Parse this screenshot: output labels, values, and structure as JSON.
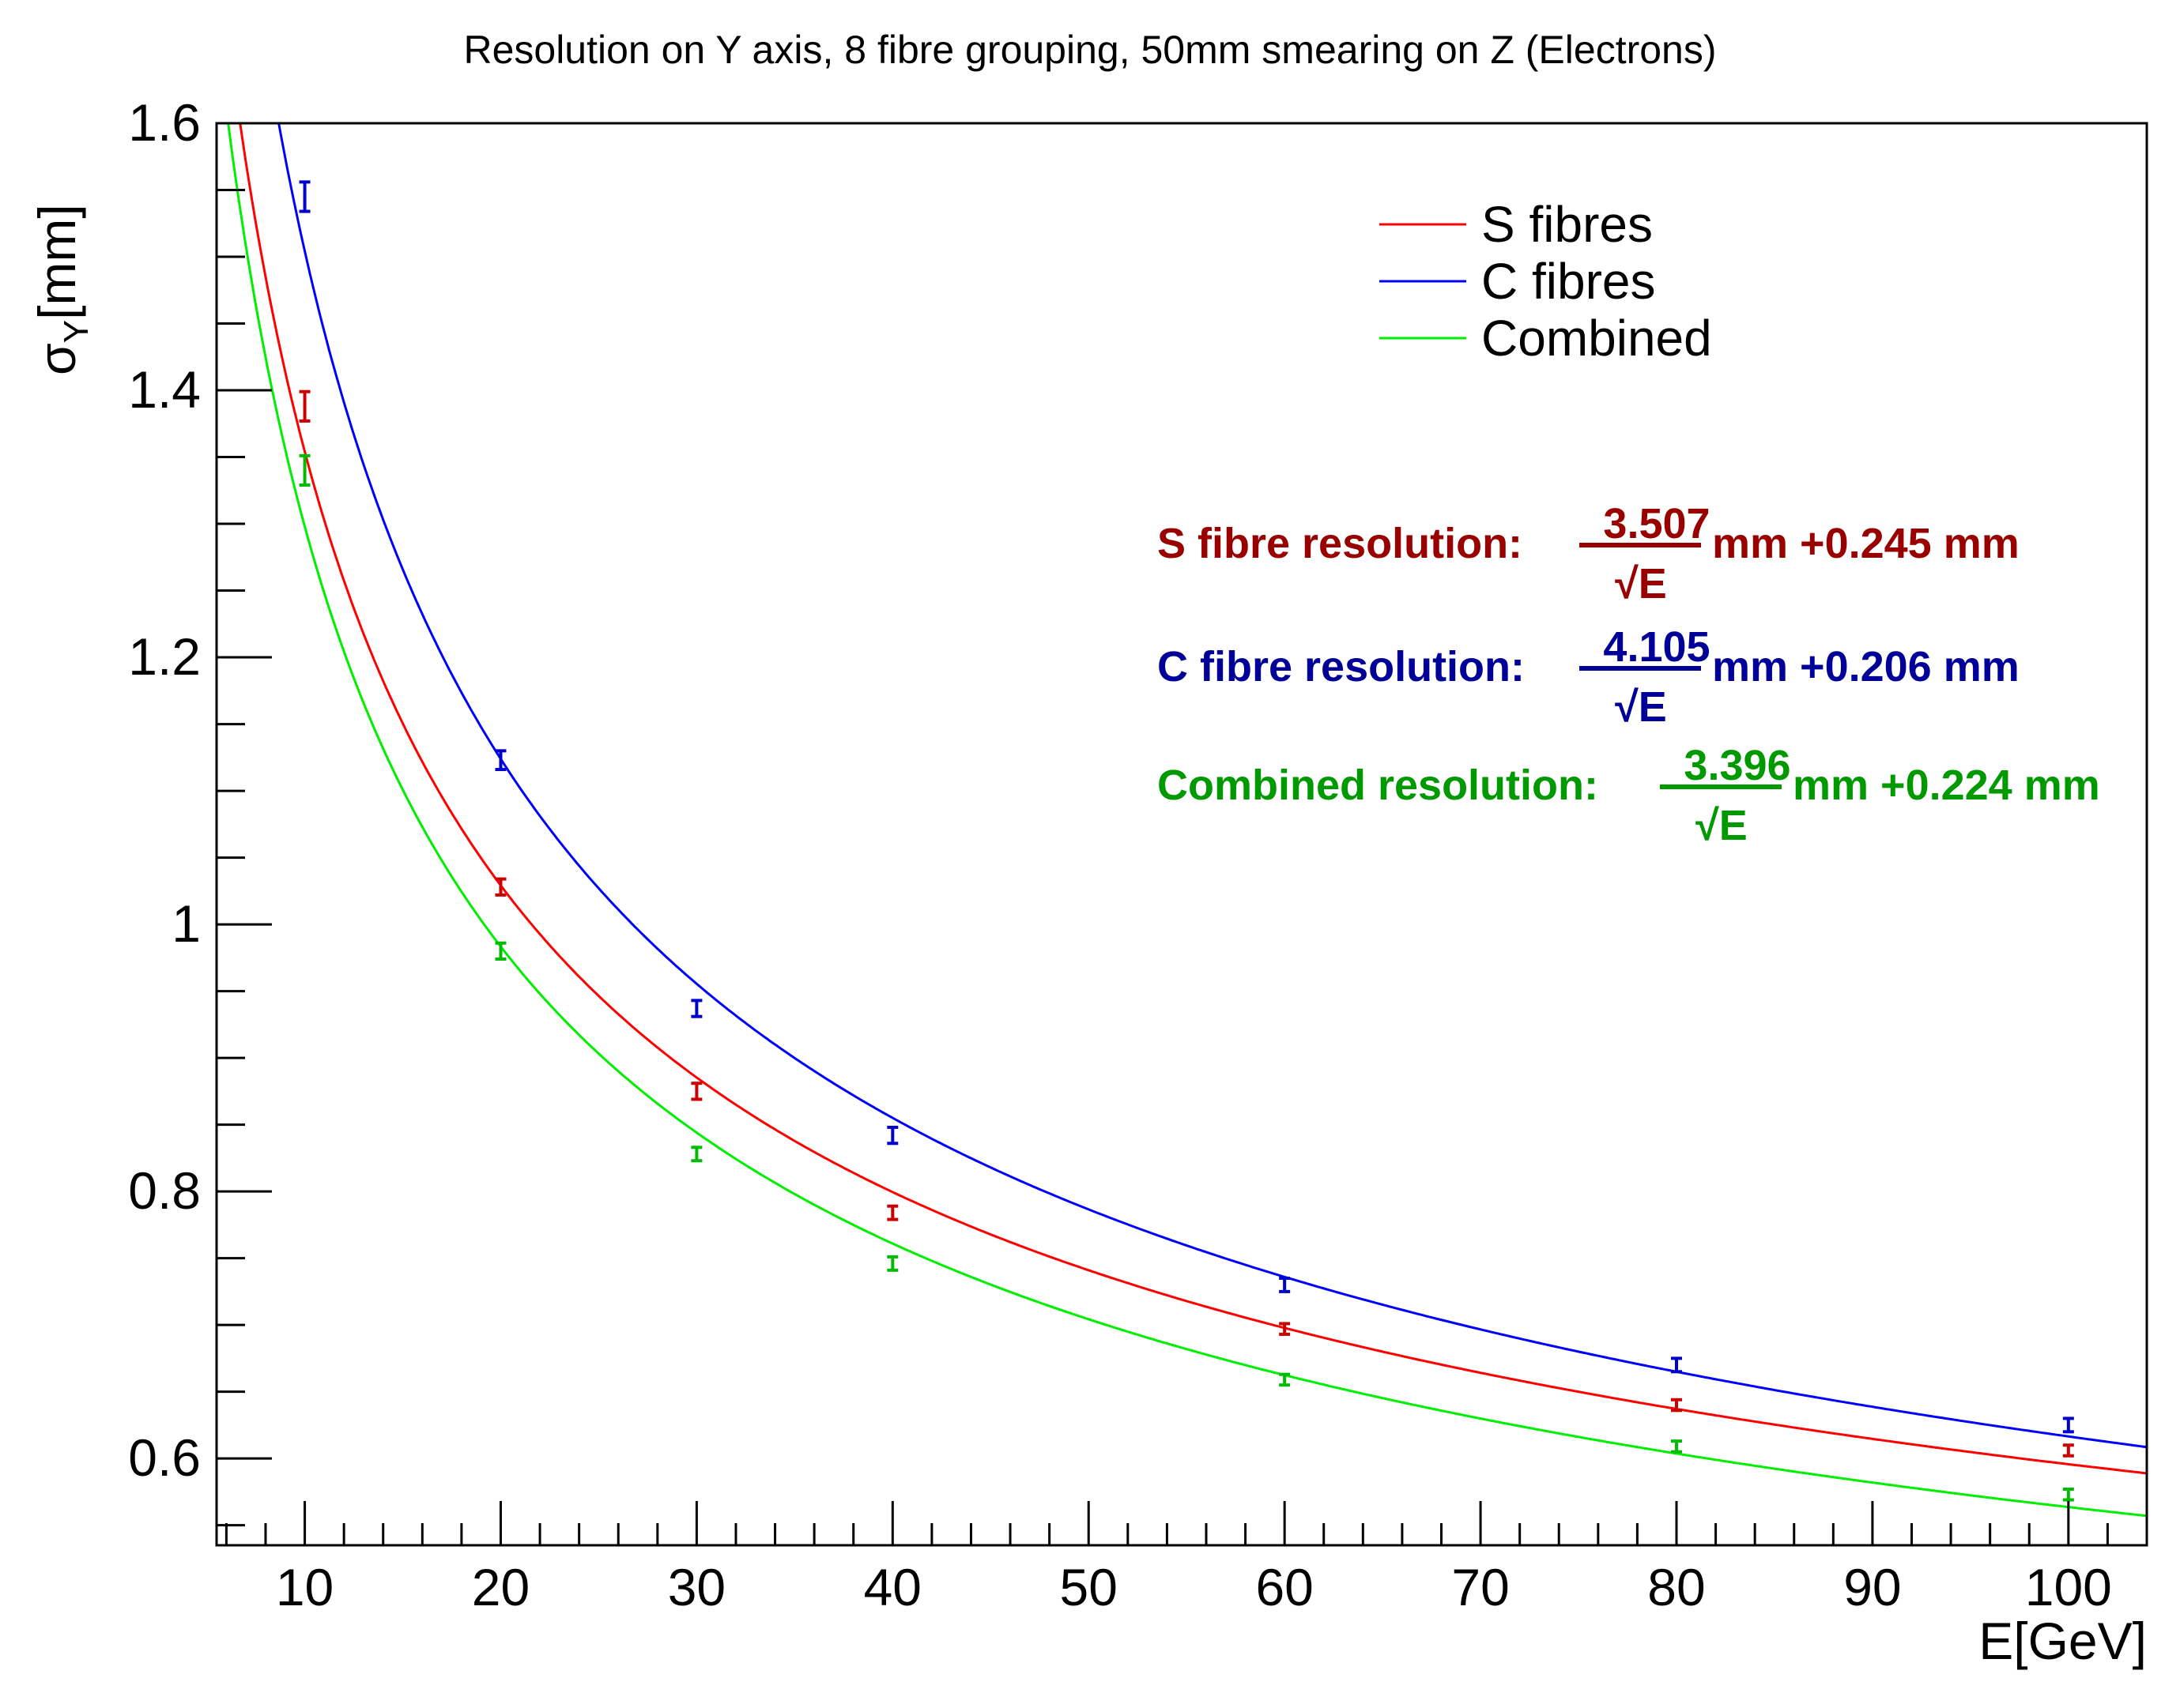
{
  "chart_data": {
    "type": "scatter",
    "title": "Resolution on Y axis, 8 fibre grouping, 50mm smearing on Z (Electrons)",
    "xlabel": "E[GeV]",
    "ylabel": {
      "main": "σ",
      "sub": "Y",
      "unit": "[mm]"
    },
    "xlim": [
      5.5,
      104
    ],
    "ylim": [
      0.535,
      1.6
    ],
    "x_ticks": [
      10,
      20,
      30,
      40,
      50,
      60,
      70,
      80,
      90,
      100
    ],
    "y_ticks": [
      0.6,
      0.8,
      1,
      1.2,
      1.4,
      1.6
    ],
    "x": [
      10,
      20,
      30,
      40,
      60,
      80,
      100
    ],
    "series": [
      {
        "name": "S fibres",
        "line_color": "#ff0000",
        "point_color": "#cc0000",
        "values": [
          1.388,
          1.028,
          0.875,
          0.784,
          0.697,
          0.64,
          0.606
        ],
        "errors": [
          0.011,
          0.006,
          0.006,
          0.005,
          0.004,
          0.004,
          0.004
        ],
        "fit": {
          "a": 3.507,
          "b": 0.245
        }
      },
      {
        "name": "C fibres",
        "line_color": "#0000ff",
        "point_color": "#0000cc",
        "values": [
          1.545,
          1.123,
          0.937,
          0.842,
          0.73,
          0.67,
          0.625
        ],
        "errors": [
          0.011,
          0.007,
          0.006,
          0.006,
          0.005,
          0.005,
          0.005
        ],
        "fit": {
          "a": 4.105,
          "b": 0.206
        }
      },
      {
        "name": "Combined",
        "line_color": "#00ee00",
        "point_color": "#00bb00",
        "values": [
          1.34,
          0.98,
          0.828,
          0.746,
          0.659,
          0.609,
          0.573
        ],
        "errors": [
          0.011,
          0.006,
          0.005,
          0.005,
          0.004,
          0.004,
          0.004
        ],
        "fit": {
          "a": 3.396,
          "b": 0.224
        }
      }
    ],
    "legend": {
      "position": "top-right",
      "entries": [
        "S fibres",
        "C fibres",
        "Combined"
      ]
    },
    "annotations": [
      {
        "label": "S fibre resolution:",
        "numerator": "3.507",
        "denominator": "√E",
        "suffix": "mm +0.245 mm",
        "color": "#990000"
      },
      {
        "label": "C fibre resolution:",
        "numerator": "4.105",
        "denominator": "√E",
        "suffix": "mm +0.206 mm",
        "color": "#000099"
      },
      {
        "label": "Combined resolution:",
        "numerator": "3.396",
        "denominator": "√E",
        "suffix": "mm +0.224 mm",
        "color": "#009900"
      }
    ]
  }
}
